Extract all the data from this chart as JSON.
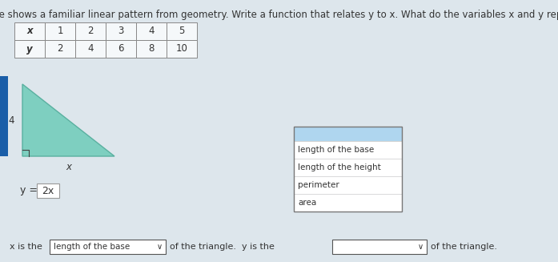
{
  "title": "The table shows a familiar linear pattern from geometry. Write a function that relates y to x. What do the variables x and y represent?",
  "title_fontsize": 8.5,
  "table_x_row": [
    "x",
    "1",
    "2",
    "3",
    "4",
    "5"
  ],
  "table_y_row": [
    "y",
    "2",
    "4",
    "6",
    "8",
    "10"
  ],
  "triangle_color": "#7ecfc0",
  "triangle_edge_color": "#5ab0a0",
  "label_4": "4",
  "label_x_italic": "x",
  "equation_prefix": "y =",
  "equation_box_text": "2x",
  "dropdown1_text": "length of the base",
  "dropdown_menu_items": [
    "length of the base",
    "length of the height",
    "perimeter",
    "area"
  ],
  "dropdown_menu_highlight_color": "#afd6ef",
  "bottom_text_part1": "x is the",
  "bottom_text_part2": "of the triangle.  y is the",
  "bottom_text_part3": "of the triangle.",
  "bg_color": "#dde6ec",
  "sidebar_color": "#1a5ea8",
  "table_bg": "#f5f8fa",
  "white": "#ffffff",
  "border_color": "#999999",
  "dark_border": "#555555",
  "text_color": "#333333"
}
